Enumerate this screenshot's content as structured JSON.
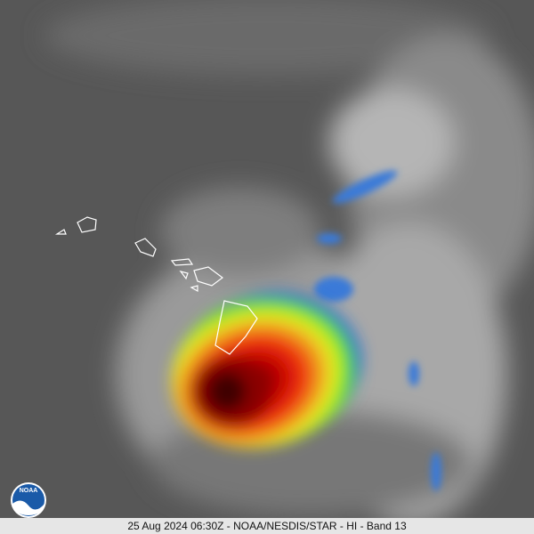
{
  "logo": {
    "text": "NOAA"
  },
  "caption": "25 Aug 2024 06:30Z - NOAA/NESDIS/STAR - HI - Band 13"
}
